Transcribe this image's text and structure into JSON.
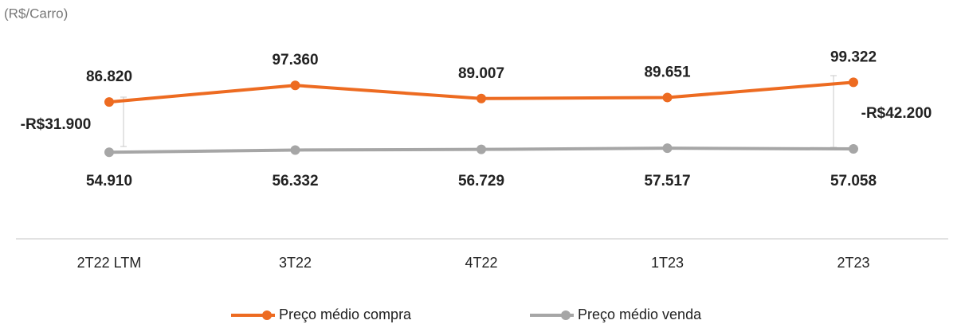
{
  "chart_data": {
    "type": "line",
    "subtitle": "(R$/Carro)",
    "categories": [
      "2T22 LTM",
      "3T22",
      "4T22",
      "1T23",
      "2T23"
    ],
    "series": [
      {
        "name": "Preço médio compra",
        "color": "#ed6b21",
        "values": [
          86820,
          97360,
          89007,
          89651,
          99322
        ],
        "value_labels": [
          "86.820",
          "97.360",
          "89.007",
          "89.651",
          "99.322"
        ]
      },
      {
        "name": "Preço médio venda",
        "color": "#a6a6a6",
        "values": [
          54910,
          56332,
          56729,
          57517,
          57058
        ],
        "value_labels": [
          "54.910",
          "56.332",
          "56.729",
          "57.517",
          "57.058"
        ]
      }
    ],
    "annotations": [
      "-R$31.900",
      "-R$42.200"
    ],
    "ylim": [
      0,
      150000
    ],
    "legend": "bottom"
  }
}
